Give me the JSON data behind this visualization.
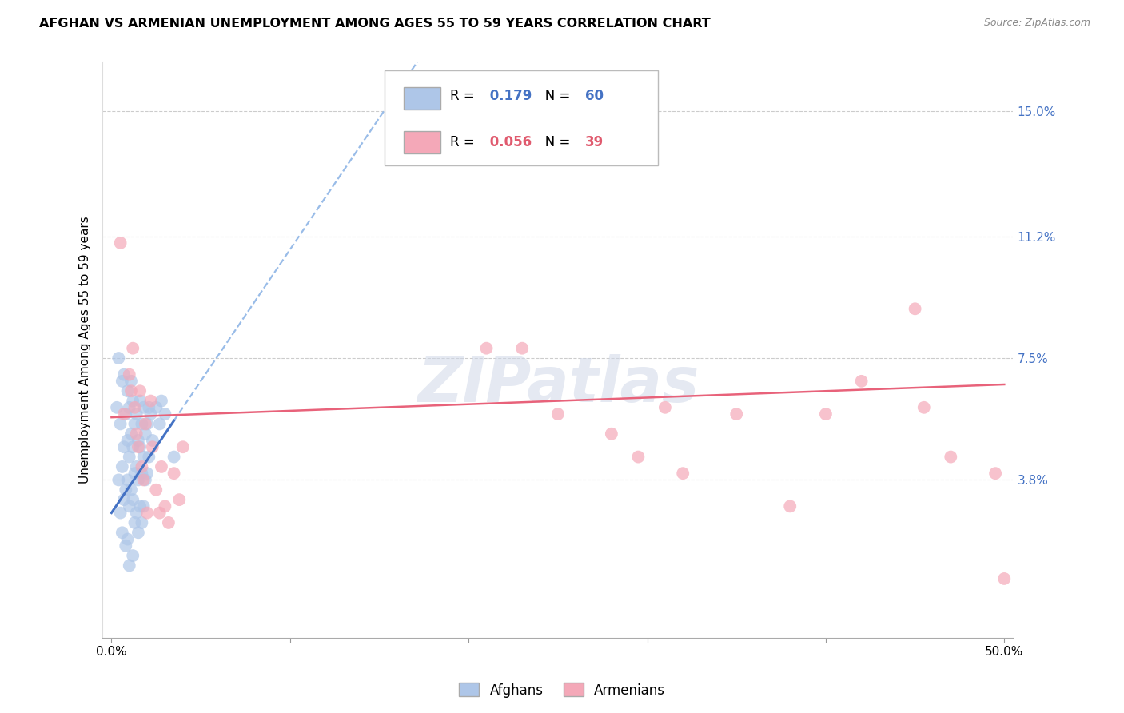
{
  "title": "AFGHAN VS ARMENIAN UNEMPLOYMENT AMONG AGES 55 TO 59 YEARS CORRELATION CHART",
  "source": "Source: ZipAtlas.com",
  "ylabel": "Unemployment Among Ages 55 to 59 years",
  "xlim": [
    -0.005,
    0.505
  ],
  "ylim": [
    -0.01,
    0.165
  ],
  "xtick_vals": [
    0.0,
    0.1,
    0.2,
    0.3,
    0.4,
    0.5
  ],
  "xtick_labels_show": [
    "0.0%",
    "",
    "",
    "",
    "",
    "50.0%"
  ],
  "yticks_right": [
    0.038,
    0.075,
    0.112,
    0.15
  ],
  "yticks_right_labels": [
    "3.8%",
    "7.5%",
    "11.2%",
    "15.0%"
  ],
  "grid_color": "#cccccc",
  "bg_color": "#ffffff",
  "legend_r_afghan": "0.179",
  "legend_n_afghan": "60",
  "legend_r_armenian": "0.056",
  "legend_n_armenian": "39",
  "afghan_color": "#aec6e8",
  "armenian_color": "#f4a8b8",
  "trend_afghan_solid_color": "#4472c4",
  "trend_afghan_dash_color": "#99bce8",
  "trend_armenian_color": "#e8627a",
  "watermark_text": "ZIPatlas",
  "afghans_x": [
    0.003,
    0.004,
    0.004,
    0.005,
    0.005,
    0.006,
    0.006,
    0.006,
    0.007,
    0.007,
    0.007,
    0.008,
    0.008,
    0.008,
    0.009,
    0.009,
    0.009,
    0.009,
    0.01,
    0.01,
    0.01,
    0.01,
    0.011,
    0.011,
    0.011,
    0.012,
    0.012,
    0.012,
    0.012,
    0.013,
    0.013,
    0.013,
    0.014,
    0.014,
    0.014,
    0.015,
    0.015,
    0.015,
    0.016,
    0.016,
    0.016,
    0.017,
    0.017,
    0.017,
    0.018,
    0.018,
    0.018,
    0.019,
    0.019,
    0.02,
    0.02,
    0.021,
    0.021,
    0.022,
    0.023,
    0.025,
    0.027,
    0.028,
    0.03,
    0.035
  ],
  "afghans_y": [
    0.06,
    0.075,
    0.038,
    0.055,
    0.028,
    0.068,
    0.042,
    0.022,
    0.07,
    0.048,
    0.032,
    0.058,
    0.035,
    0.018,
    0.065,
    0.05,
    0.038,
    0.02,
    0.06,
    0.045,
    0.03,
    0.012,
    0.068,
    0.052,
    0.035,
    0.062,
    0.048,
    0.032,
    0.015,
    0.055,
    0.04,
    0.025,
    0.058,
    0.042,
    0.028,
    0.05,
    0.038,
    0.022,
    0.062,
    0.048,
    0.03,
    0.055,
    0.04,
    0.025,
    0.06,
    0.045,
    0.03,
    0.052,
    0.038,
    0.055,
    0.04,
    0.06,
    0.045,
    0.058,
    0.05,
    0.06,
    0.055,
    0.062,
    0.058,
    0.045
  ],
  "armenians_x": [
    0.005,
    0.007,
    0.01,
    0.011,
    0.012,
    0.013,
    0.014,
    0.015,
    0.016,
    0.017,
    0.018,
    0.019,
    0.02,
    0.022,
    0.023,
    0.025,
    0.027,
    0.028,
    0.03,
    0.032,
    0.035,
    0.038,
    0.04,
    0.21,
    0.23,
    0.25,
    0.28,
    0.295,
    0.31,
    0.32,
    0.35,
    0.38,
    0.4,
    0.42,
    0.45,
    0.455,
    0.47,
    0.495,
    0.5
  ],
  "armenians_y": [
    0.11,
    0.058,
    0.07,
    0.065,
    0.078,
    0.06,
    0.052,
    0.048,
    0.065,
    0.042,
    0.038,
    0.055,
    0.028,
    0.062,
    0.048,
    0.035,
    0.028,
    0.042,
    0.03,
    0.025,
    0.04,
    0.032,
    0.048,
    0.078,
    0.078,
    0.058,
    0.052,
    0.045,
    0.06,
    0.04,
    0.058,
    0.03,
    0.058,
    0.068,
    0.09,
    0.06,
    0.045,
    0.04,
    0.008
  ],
  "afghan_trend_x_start": 0.0,
  "afghan_trend_x_solid_end": 0.035,
  "afghan_trend_x_dash_end": 0.5,
  "afghan_trend_slope": 0.8,
  "afghan_trend_intercept": 0.028,
  "armenian_trend_slope": 0.02,
  "armenian_trend_intercept": 0.057
}
